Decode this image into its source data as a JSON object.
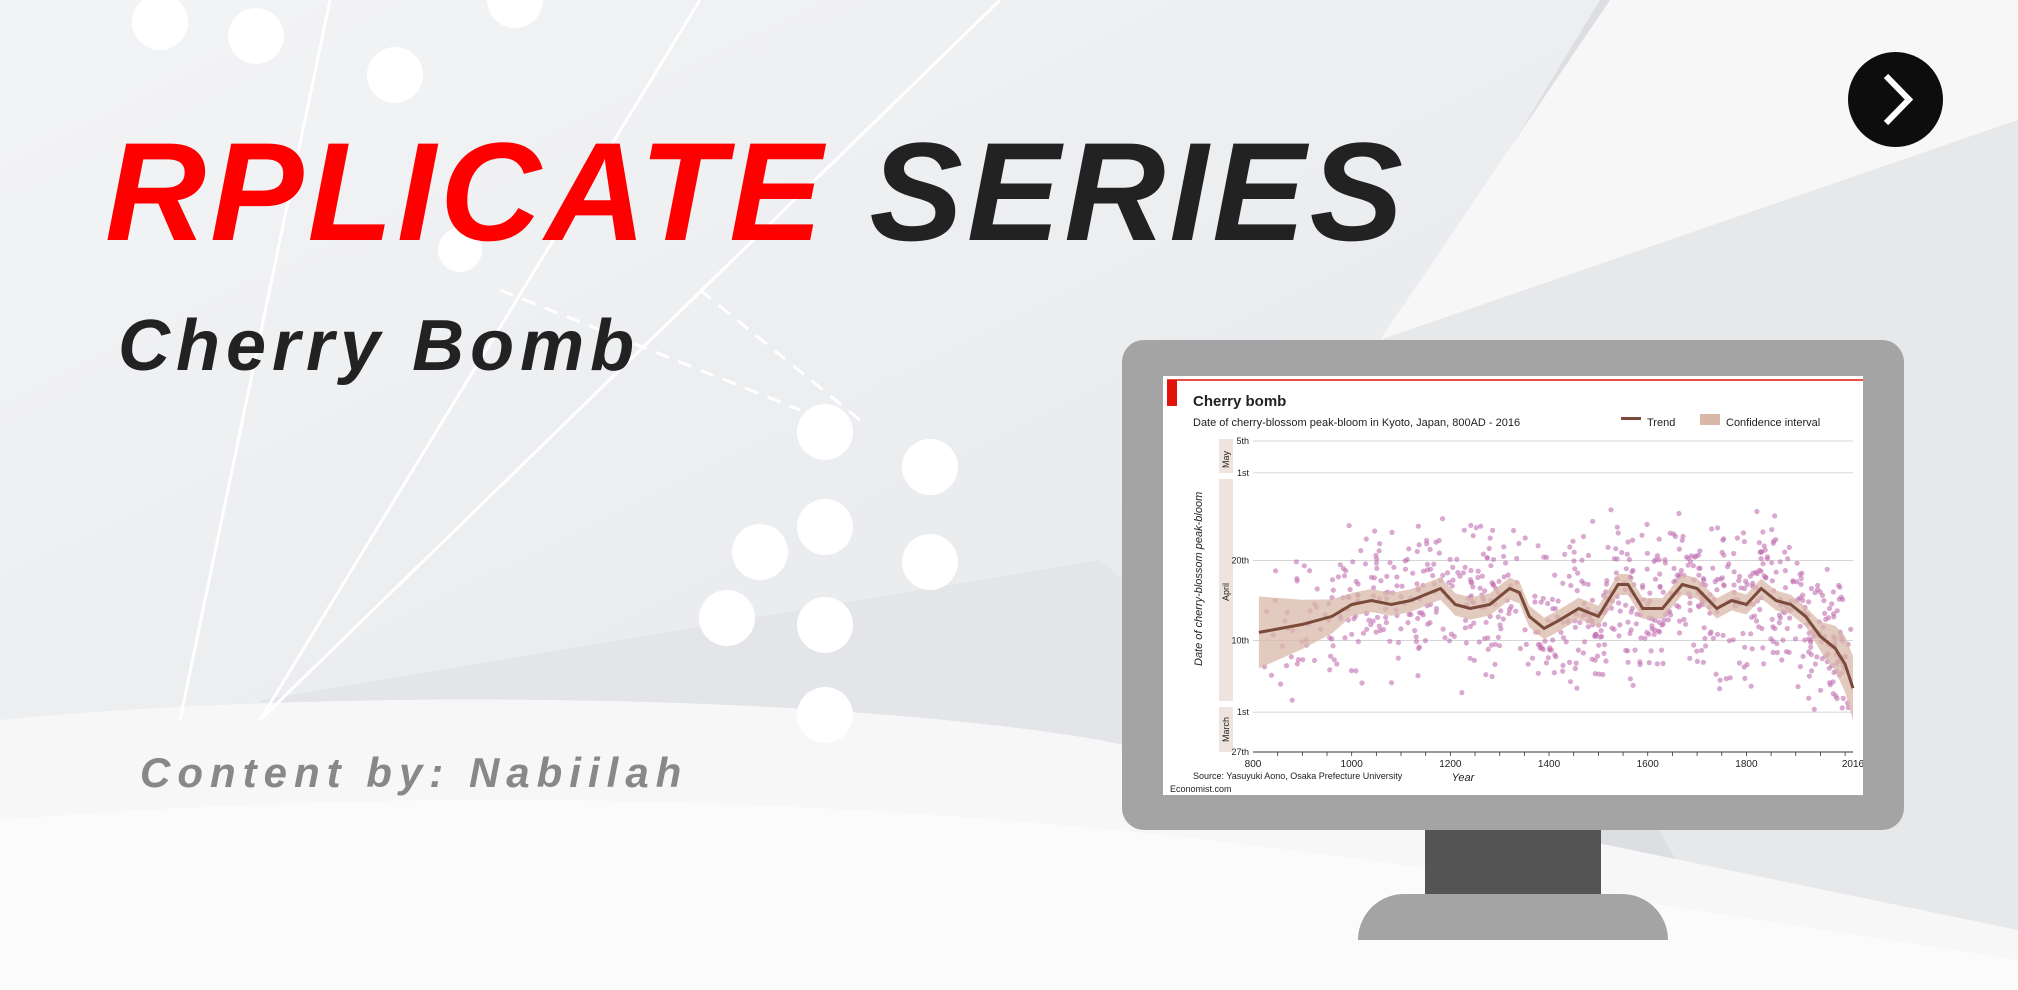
{
  "header": {
    "title_part1": "RPLICATE",
    "title_part2": "SERIES",
    "subtitle": "Cherry Bomb",
    "credit": "Content by: Nabiilah"
  },
  "navigation": {
    "next_icon": "chevron-right-icon"
  },
  "colors": {
    "accent": "#ff0000",
    "dark": "#222222",
    "scatter": "#c06fb0",
    "trend": "#7a4a3a",
    "ci": "#d9b8aa"
  },
  "chart_data": {
    "type": "scatter",
    "title": "Cherry bomb",
    "subtitle": "Date of cherry-blossom peak-bloom in Kyoto, Japan, 800AD - 2016",
    "legend": [
      "Trend",
      "Confidence interval"
    ],
    "legend_placement": "top-right",
    "xlabel": "Year",
    "ylabel": "Date of cherry-blossom peak-bloom",
    "xlim": [
      800,
      2016
    ],
    "x_ticks": [
      "800",
      "1000",
      "1200",
      "1400",
      "1600",
      "1800",
      "2016"
    ],
    "y_ticks": [
      "5th",
      "1st",
      "20th",
      "10th",
      "1st",
      "27th"
    ],
    "y_groups": [
      "May",
      "April",
      "March"
    ],
    "ylim_day_of_year": [
      86,
      125
    ],
    "grid": true,
    "trend": {
      "x": [
        812,
        900,
        960,
        1000,
        1040,
        1080,
        1120,
        1160,
        1180,
        1210,
        1240,
        1280,
        1320,
        1340,
        1360,
        1390,
        1420,
        1460,
        1500,
        1540,
        1560,
        1590,
        1630,
        1670,
        1700,
        1740,
        1770,
        1800,
        1830,
        1860,
        1890,
        1920,
        1950,
        1980,
        2000,
        2016
      ],
      "y": [
        101,
        102,
        103,
        104.5,
        105,
        104.5,
        105,
        106,
        106.5,
        104.5,
        104,
        104.5,
        106.5,
        106,
        103,
        101.5,
        102.5,
        104,
        103,
        107,
        107,
        104,
        104,
        107,
        106.5,
        104,
        105,
        104.5,
        106.5,
        105,
        104.5,
        103,
        100.5,
        99,
        97,
        94
      ]
    },
    "source": "Source: Yasuyuki Aono, Osaka Prefecture University",
    "footer": "Economist.com"
  }
}
